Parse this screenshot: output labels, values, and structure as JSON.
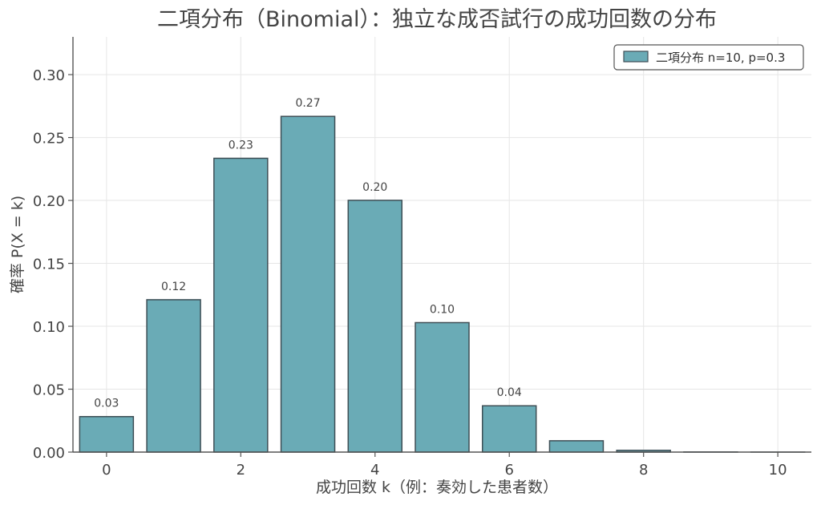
{
  "chart_data": {
    "type": "bar",
    "title": "二項分布（Binomial）：独立な成否試行の成功回数の分布",
    "xlabel": "成功回数 k（例：奏効した患者数）",
    "ylabel": "確率 P(X = k)",
    "categories": [
      0,
      1,
      2,
      3,
      4,
      5,
      6,
      7,
      8,
      9,
      10
    ],
    "series": [
      {
        "name": "二項分布 n=10, p=0.3",
        "values": [
          0.0282,
          0.1211,
          0.2335,
          0.2668,
          0.2001,
          0.1029,
          0.0368,
          0.009,
          0.0014,
          0.0001,
          5.9e-06
        ]
      }
    ],
    "data_labels": [
      "0.03",
      "0.12",
      "0.23",
      "0.27",
      "0.20",
      "0.10",
      "0.04",
      "",
      "",
      "",
      ""
    ],
    "xticks": [
      "0",
      "2",
      "4",
      "6",
      "8",
      "10"
    ],
    "xtick_values": [
      0,
      2,
      4,
      6,
      8,
      10
    ],
    "yticks": [
      "0.00",
      "0.05",
      "0.10",
      "0.15",
      "0.20",
      "0.25",
      "0.30"
    ],
    "ytick_values": [
      0,
      0.05,
      0.1,
      0.15,
      0.2,
      0.25,
      0.3
    ],
    "ylim": [
      0,
      0.33
    ],
    "xlim": [
      -0.5,
      10.5
    ],
    "grid": true,
    "legend_position": "top-right",
    "colors": {
      "bar": "#6aabb6",
      "bar_edge": "#3e4e55"
    }
  }
}
